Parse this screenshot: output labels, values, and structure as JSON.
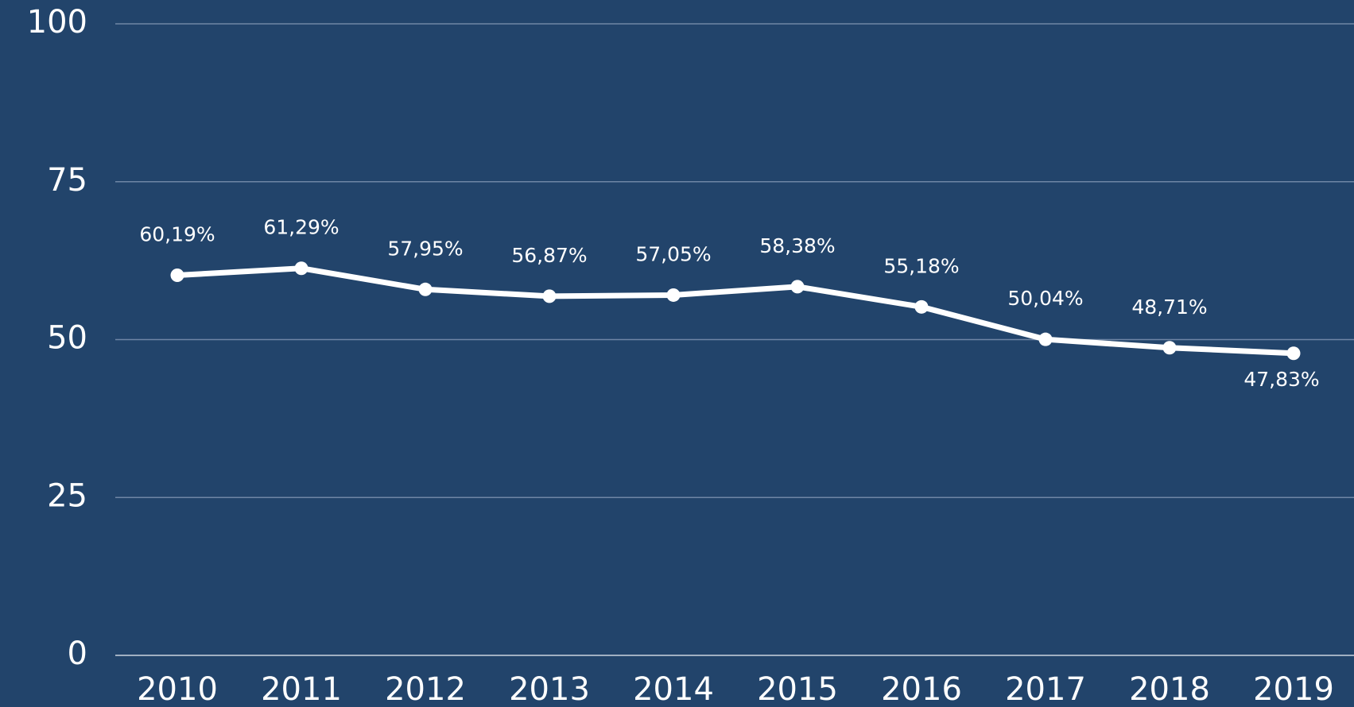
{
  "chart_data": {
    "type": "line",
    "categories": [
      "2010",
      "2011",
      "2012",
      "2013",
      "2014",
      "2015",
      "2016",
      "2017",
      "2018",
      "2019"
    ],
    "series": [
      {
        "color": "#ffffff",
        "values": [
          60.19,
          61.29,
          57.95,
          56.87,
          57.05,
          58.38,
          55.18,
          50.04,
          48.71,
          47.83
        ],
        "value_labels": [
          "60,19%",
          "61,29%",
          "57,95%",
          "56,87%",
          "57,05%",
          "58,38%",
          "55,18%",
          "50,04%",
          "48,71%",
          "47,83%"
        ]
      }
    ],
    "ylim": [
      0,
      100
    ],
    "yticks": [
      0,
      25,
      50,
      75,
      100
    ],
    "grid": true
  }
}
